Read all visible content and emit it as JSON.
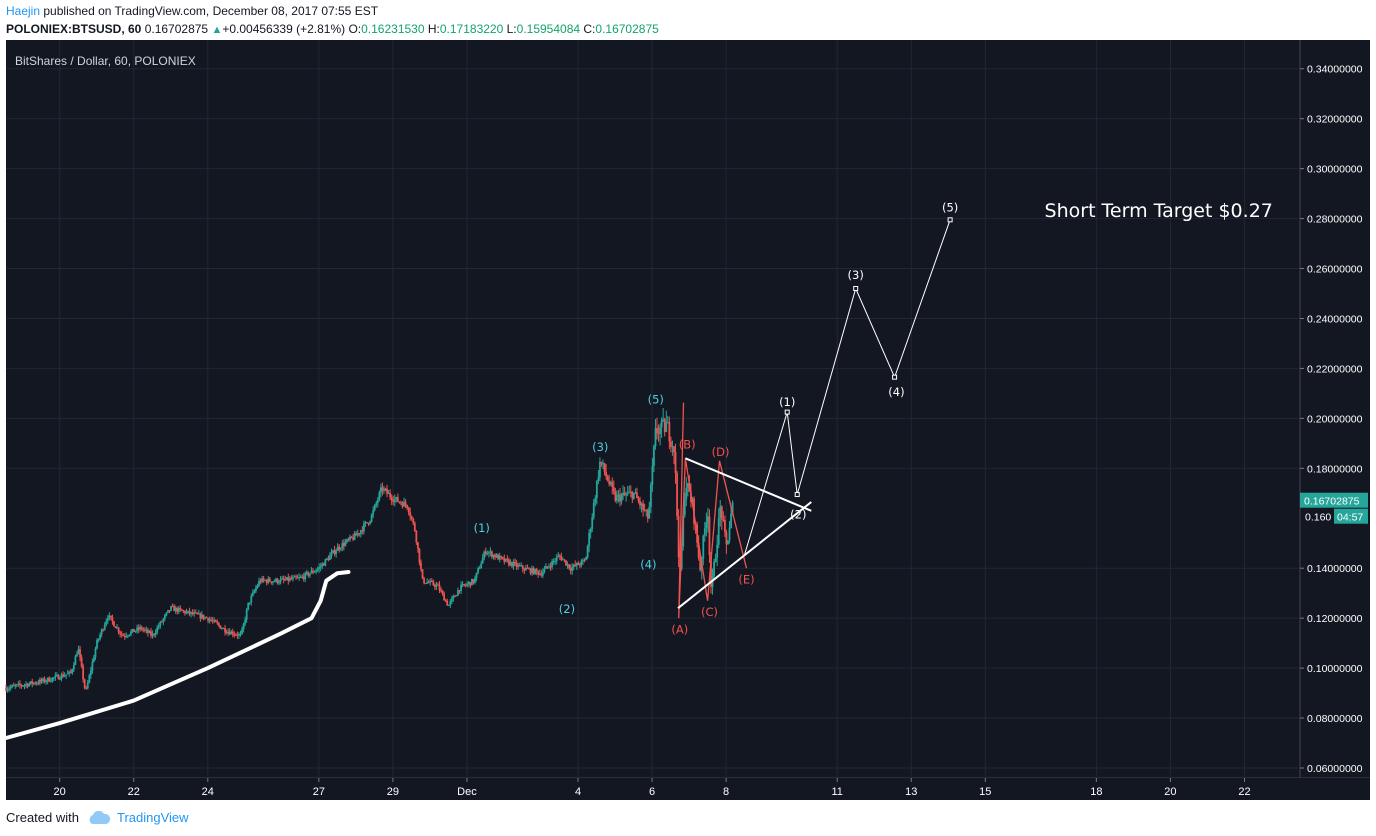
{
  "header": {
    "publisher": "Haejin",
    "published_text": "published on TradingView.com, December 08, 2017 07:55 EST",
    "symbol": "POLONIEX:BTSUSD, 60",
    "last": "0.16702875",
    "change": "+0.00456339 (+2.81%)",
    "o_label": "O:",
    "o_value": "0.16231530",
    "h_label": "H:",
    "h_value": "0.17183220",
    "l_label": "L:",
    "l_value": "0.15954084",
    "c_label": "C:",
    "c_value": "0.16702875"
  },
  "footer": {
    "created_with": "Created with",
    "brand": "TradingView"
  },
  "colors": {
    "background": "#131722",
    "up": "#26a69a",
    "down": "#ef5350",
    "wave_cyan": "#4dd0e1",
    "wave_red": "#ef5350",
    "projection": "#ffffff",
    "price_label": "#26a69a",
    "axis_text": "#ffffff"
  },
  "chart_data": {
    "type": "candlestick",
    "title": "BitShares / Dollar, 60, POLONIEX",
    "x_unit": "day",
    "xlim": [
      18.55,
      53.5
    ],
    "ylim": [
      0.056,
      0.3515
    ],
    "x_ticks": [
      {
        "x": 20,
        "label": "20"
      },
      {
        "x": 22,
        "label": "22"
      },
      {
        "x": 24,
        "label": "24"
      },
      {
        "x": 27,
        "label": "27"
      },
      {
        "x": 29,
        "label": "29"
      },
      {
        "x": 31,
        "label": "Dec"
      },
      {
        "x": 34,
        "label": "4"
      },
      {
        "x": 36,
        "label": "6"
      },
      {
        "x": 38,
        "label": "8"
      },
      {
        "x": 41,
        "label": "11"
      },
      {
        "x": 43,
        "label": "13"
      },
      {
        "x": 45,
        "label": "15"
      },
      {
        "x": 48,
        "label": "18"
      },
      {
        "x": 50,
        "label": "20"
      },
      {
        "x": 52,
        "label": "22"
      }
    ],
    "y_ticks": [
      {
        "v": 0.06,
        "label": "0.06000000"
      },
      {
        "v": 0.08,
        "label": "0.08000000"
      },
      {
        "v": 0.1,
        "label": "0.10000000"
      },
      {
        "v": 0.12,
        "label": "0.12000000"
      },
      {
        "v": 0.14,
        "label": "0.14000000"
      },
      {
        "v": 0.18,
        "label": "0.18000000"
      },
      {
        "v": 0.2,
        "label": "0.20000000"
      },
      {
        "v": 0.22,
        "label": "0.22000000"
      },
      {
        "v": 0.24,
        "label": "0.24000000"
      },
      {
        "v": 0.26,
        "label": "0.26000000"
      },
      {
        "v": 0.28,
        "label": "0.28000000"
      },
      {
        "v": 0.3,
        "label": "0.30000000"
      },
      {
        "v": 0.32,
        "label": "0.32000000"
      },
      {
        "v": 0.34,
        "label": "0.34000000"
      }
    ],
    "last_price": {
      "v": 0.16702875,
      "label": "0.16702875"
    },
    "secondary_price": {
      "v": 0.1604,
      "label": "0.160",
      "countdown": "04:57"
    },
    "price_path": [
      [
        18.55,
        0.092
      ],
      [
        19.6,
        0.095
      ],
      [
        20.3,
        0.098
      ],
      [
        20.5,
        0.108
      ],
      [
        20.7,
        0.09
      ],
      [
        21.0,
        0.11
      ],
      [
        21.3,
        0.121
      ],
      [
        21.7,
        0.113
      ],
      [
        22.2,
        0.116
      ],
      [
        22.5,
        0.113
      ],
      [
        23.0,
        0.124
      ],
      [
        23.5,
        0.122
      ],
      [
        24.0,
        0.12
      ],
      [
        24.5,
        0.115
      ],
      [
        24.9,
        0.113
      ],
      [
        25.1,
        0.126
      ],
      [
        25.4,
        0.135
      ],
      [
        26.0,
        0.135
      ],
      [
        26.5,
        0.136
      ],
      [
        27.0,
        0.14
      ],
      [
        27.5,
        0.148
      ],
      [
        28.0,
        0.153
      ],
      [
        28.4,
        0.16
      ],
      [
        28.7,
        0.172
      ],
      [
        29.0,
        0.168
      ],
      [
        29.4,
        0.165
      ],
      [
        29.6,
        0.155
      ],
      [
        29.8,
        0.135
      ],
      [
        30.2,
        0.133
      ],
      [
        30.5,
        0.125
      ],
      [
        30.8,
        0.132
      ],
      [
        31.2,
        0.135
      ],
      [
        31.5,
        0.147
      ],
      [
        32.0,
        0.143
      ],
      [
        32.5,
        0.14
      ],
      [
        33.0,
        0.138
      ],
      [
        33.5,
        0.145
      ],
      [
        33.8,
        0.14
      ],
      [
        34.2,
        0.143
      ],
      [
        34.4,
        0.163
      ],
      [
        34.6,
        0.183
      ],
      [
        35.0,
        0.168
      ],
      [
        35.5,
        0.17
      ],
      [
        35.9,
        0.16
      ],
      [
        36.1,
        0.195
      ],
      [
        36.4,
        0.197
      ],
      [
        36.6,
        0.188
      ],
      [
        36.75,
        0.135
      ],
      [
        36.9,
        0.175
      ],
      [
        37.1,
        0.165
      ],
      [
        37.3,
        0.14
      ],
      [
        37.5,
        0.165
      ],
      [
        37.6,
        0.13
      ],
      [
        37.85,
        0.165
      ],
      [
        38.0,
        0.148
      ],
      [
        38.2,
        0.167
      ]
    ],
    "moving_average": [
      [
        18.55,
        0.072
      ],
      [
        20,
        0.078
      ],
      [
        22,
        0.087
      ],
      [
        24,
        0.1
      ],
      [
        26,
        0.114
      ],
      [
        26.8,
        0.12
      ],
      [
        27.05,
        0.127
      ],
      [
        27.2,
        0.135
      ],
      [
        27.5,
        0.138
      ],
      [
        27.8,
        0.1385
      ]
    ],
    "waves_cyan": [
      {
        "label": "(1)",
        "x": 31.4,
        "y": 0.1562
      },
      {
        "label": "(2)",
        "x": 33.7,
        "y": 0.1236
      },
      {
        "label": "(3)",
        "x": 34.6,
        "y": 0.1885
      },
      {
        "label": "(4)",
        "x": 35.9,
        "y": 0.1415
      },
      {
        "label": "(5)",
        "x": 36.1,
        "y": 0.2075
      }
    ],
    "waves_red": {
      "path": [
        [
          36.85,
          0.2063
        ],
        [
          36.72,
          0.12
        ],
        [
          36.9,
          0.184
        ],
        [
          37.5,
          0.127
        ],
        [
          37.82,
          0.183
        ],
        [
          38.55,
          0.14
        ]
      ],
      "labels": [
        {
          "label": "(A)",
          "x": 36.75,
          "y": 0.1155
        },
        {
          "label": "(B)",
          "x": 36.95,
          "y": 0.1895
        },
        {
          "label": "(C)",
          "x": 37.55,
          "y": 0.1225
        },
        {
          "label": "(D)",
          "x": 37.85,
          "y": 0.1865
        },
        {
          "label": "(E)",
          "x": 38.55,
          "y": 0.1355
        }
      ]
    },
    "triangle": {
      "upper": [
        [
          36.9,
          0.184
        ],
        [
          40.3,
          0.163
        ]
      ],
      "lower": [
        [
          36.7,
          0.124
        ],
        [
          40.3,
          0.1665
        ]
      ]
    },
    "projection": {
      "path": [
        [
          38.5,
          0.1455
        ],
        [
          39.65,
          0.2025
        ],
        [
          39.92,
          0.1695
        ],
        [
          41.5,
          0.252
        ],
        [
          42.55,
          0.2165
        ],
        [
          44.05,
          0.2795
        ]
      ],
      "labels": [
        {
          "label": "(1)",
          "x": 39.65,
          "y": 0.2065
        },
        {
          "label": "(2)",
          "x": 39.95,
          "y": 0.1615
        },
        {
          "label": "(3)",
          "x": 41.5,
          "y": 0.2575
        },
        {
          "label": "(4)",
          "x": 42.6,
          "y": 0.2105
        },
        {
          "label": "(5)",
          "x": 44.05,
          "y": 0.2845
        }
      ]
    },
    "annotation": {
      "text": "Short Term Target $0.27",
      "x": 46.6,
      "y": 0.2835
    }
  }
}
